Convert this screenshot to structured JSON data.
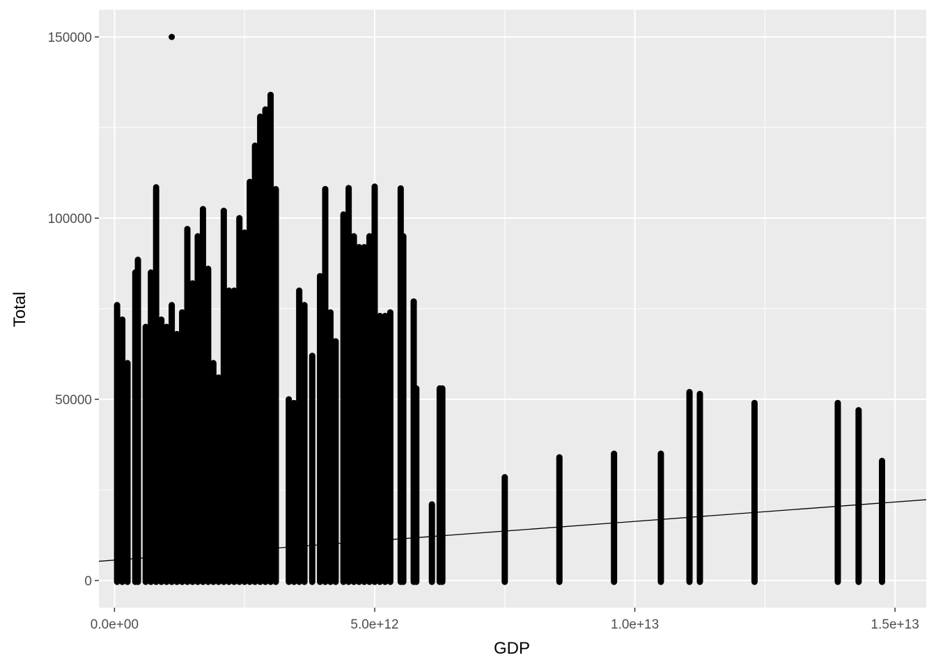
{
  "chart_data": {
    "type": "scatter",
    "title": "",
    "xlabel": "GDP",
    "ylabel": "Total",
    "xlim": [
      -300000000000,
      15600000000000
    ],
    "ylim": [
      -7500,
      157500
    ],
    "x_ticks": [
      {
        "value": 0,
        "label": "0.0e+00"
      },
      {
        "value": 5000000000000,
        "label": "5.0e+12"
      },
      {
        "value": 10000000000000,
        "label": "1.0e+13"
      },
      {
        "value": 15000000000000,
        "label": "1.5e+13"
      }
    ],
    "y_ticks": [
      {
        "value": 0,
        "label": "0"
      },
      {
        "value": 50000,
        "label": "50000"
      },
      {
        "value": 100000,
        "label": "100000"
      },
      {
        "value": 150000,
        "label": "150000"
      }
    ],
    "grid": true,
    "legend": "none",
    "background_color": "#ebebeb",
    "point_color": "#000000",
    "columns": [
      {
        "x": 50000000000.0,
        "max": 76000
      },
      {
        "x": 150000000000.0,
        "max": 72000
      },
      {
        "x": 250000000000.0,
        "max": 60000
      },
      {
        "x": 400000000000.0,
        "max": 85000
      },
      {
        "x": 450000000000.0,
        "max": 88500
      },
      {
        "x": 600000000000.0,
        "max": 70000
      },
      {
        "x": 700000000000.0,
        "max": 85000
      },
      {
        "x": 800000000000.0,
        "max": 108000
      },
      {
        "x": 900000000000.0,
        "max": 72000
      },
      {
        "x": 1000000000000.0,
        "max": 70000
      },
      {
        "x": 1100000000000.0,
        "max": 76000
      },
      {
        "x": 1200000000000.0,
        "max": 68000
      },
      {
        "x": 1300000000000.0,
        "max": 74000
      },
      {
        "x": 1400000000000.0,
        "max": 97000
      },
      {
        "x": 1500000000000.0,
        "max": 82000
      },
      {
        "x": 1600000000000.0,
        "max": 95000
      },
      {
        "x": 1700000000000.0,
        "max": 102000
      },
      {
        "x": 1800000000000.0,
        "max": 86000
      },
      {
        "x": 1900000000000.0,
        "max": 60000
      },
      {
        "x": 2000000000000.0,
        "max": 56000
      },
      {
        "x": 2100000000000.0,
        "max": 102000
      },
      {
        "x": 2200000000000.0,
        "max": 80000
      },
      {
        "x": 2300000000000.0,
        "max": 80000
      },
      {
        "x": 2400000000000.0,
        "max": 100000
      },
      {
        "x": 2500000000000.0,
        "max": 96000
      },
      {
        "x": 2600000000000.0,
        "max": 110000
      },
      {
        "x": 2700000000000.0,
        "max": 120000
      },
      {
        "x": 2800000000000.0,
        "max": 128000
      },
      {
        "x": 2900000000000.0,
        "max": 130000
      },
      {
        "x": 3000000000000.0,
        "max": 134000
      },
      {
        "x": 3100000000000.0,
        "max": 108000
      },
      {
        "x": 3350000000000.0,
        "max": 50000
      },
      {
        "x": 3450000000000.0,
        "max": 49000
      },
      {
        "x": 3550000000000.0,
        "max": 80000
      },
      {
        "x": 3650000000000.0,
        "max": 76000
      },
      {
        "x": 3800000000000.0,
        "max": 62000
      },
      {
        "x": 3950000000000.0,
        "max": 84000
      },
      {
        "x": 4050000000000.0,
        "max": 108000
      },
      {
        "x": 4150000000000.0,
        "max": 74000
      },
      {
        "x": 4250000000000.0,
        "max": 66000
      },
      {
        "x": 4400000000000.0,
        "max": 101000
      },
      {
        "x": 4500000000000.0,
        "max": 108000
      },
      {
        "x": 4600000000000.0,
        "max": 95000
      },
      {
        "x": 4700000000000.0,
        "max": 92000
      },
      {
        "x": 4800000000000.0,
        "max": 92000
      },
      {
        "x": 4900000000000.0,
        "max": 95000
      },
      {
        "x": 5000000000000.0,
        "max": 108500
      },
      {
        "x": 5100000000000.0,
        "max": 73000
      },
      {
        "x": 5200000000000.0,
        "max": 73000
      },
      {
        "x": 5300000000000.0,
        "max": 74000
      },
      {
        "x": 5500000000000.0,
        "max": 108000
      },
      {
        "x": 5550000000000.0,
        "max": 95000
      },
      {
        "x": 5750000000000.0,
        "max": 77000
      },
      {
        "x": 5800000000000.0,
        "max": 53000
      },
      {
        "x": 6100000000000.0,
        "max": 21000
      },
      {
        "x": 6250000000000.0,
        "max": 53000
      },
      {
        "x": 6300000000000.0,
        "max": 53000
      },
      {
        "x": 7500000000000.0,
        "max": 28500
      },
      {
        "x": 8550000000000.0,
        "max": 34000
      },
      {
        "x": 9600000000000.0,
        "max": 35000
      },
      {
        "x": 10500000000000.0,
        "max": 35000
      },
      {
        "x": 11050000000000.0,
        "max": 52000
      },
      {
        "x": 11250000000000.0,
        "max": 51500
      },
      {
        "x": 12300000000000.0,
        "max": 49000
      },
      {
        "x": 13900000000000.0,
        "max": 49000
      },
      {
        "x": 14300000000000.0,
        "max": 47000
      },
      {
        "x": 14750000000000.0,
        "max": 33000
      }
    ],
    "points": [
      {
        "x": 1100000000000.0,
        "y": 150000
      },
      {
        "x": 800000000000.0,
        "y": 108500
      },
      {
        "x": 4050000000000.0,
        "y": 108000
      },
      {
        "x": 4500000000000.0,
        "y": 108300
      },
      {
        "x": 5000000000000.0,
        "y": 108700
      },
      {
        "x": 5500000000000.0,
        "y": 108200
      },
      {
        "x": 3000000000000.0,
        "y": 134000
      },
      {
        "x": 2100000000000.0,
        "y": 102000
      },
      {
        "x": 1700000000000.0,
        "y": 102500
      }
    ],
    "trend_line": {
      "x": [
        -300000000000,
        15600000000000
      ],
      "y": [
        5300,
        22300
      ]
    }
  }
}
